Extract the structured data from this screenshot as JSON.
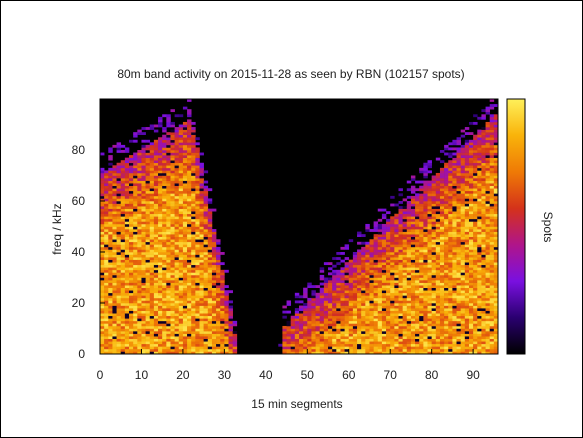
{
  "chart_data": {
    "type": "heatmap",
    "title": "80m band activity on 2015-11-28 as seen by RBN (102157 spots)",
    "xlabel": "15 min segments",
    "ylabel": "freq / kHz",
    "colorbar_label": "Spots",
    "x_range": [
      0,
      96
    ],
    "y_range": [
      0,
      100
    ],
    "x_ticks": [
      0,
      10,
      20,
      30,
      40,
      50,
      60,
      70,
      80,
      90
    ],
    "y_ticks": [
      0,
      20,
      40,
      60,
      80
    ],
    "background_color": "#000000",
    "colormap": [
      "#000000",
      "#2a0070",
      "#7a10e0",
      "#b0158a",
      "#d4321a",
      "#ef7a06",
      "#f9b30a",
      "#fff05a"
    ],
    "activity_regions": [
      {
        "x_start": 0,
        "x_end": 33,
        "top_edge_at_start": 70,
        "top_edge_peak": 92,
        "peak_at_x": 22,
        "fades_out_at_x": 33
      },
      {
        "x_start": 44,
        "x_end": 96,
        "top_edge_at_start": 10,
        "top_edge_peak": 88,
        "peak_at_x": 92,
        "rises_from_x": 44
      }
    ]
  }
}
